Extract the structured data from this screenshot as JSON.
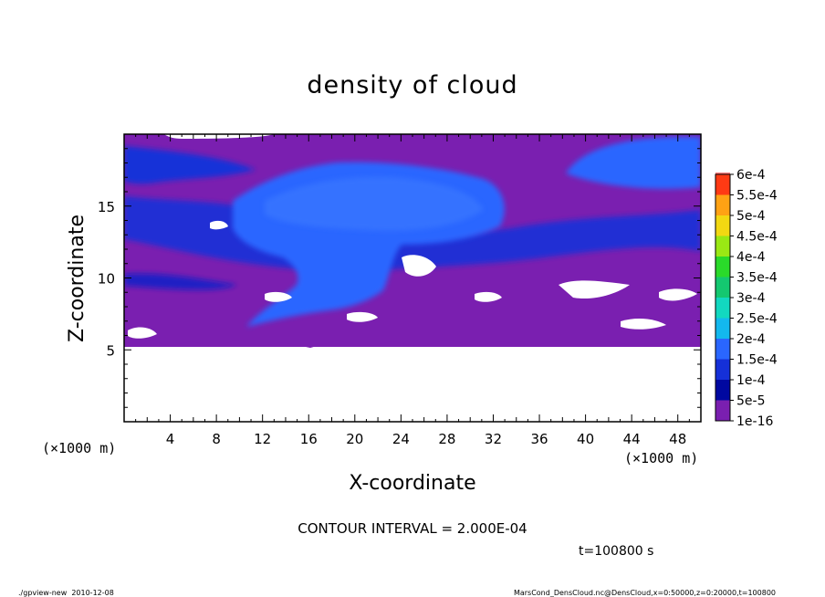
{
  "chart_data": {
    "type": "heatmap",
    "title": "density of cloud",
    "xlabel": "X-coordinate",
    "ylabel": "Z-coordinate",
    "x_unit": "(×1000 m)",
    "y_unit": "(×1000 m)",
    "xlim": [
      0,
      50
    ],
    "ylim": [
      0,
      20
    ],
    "x_ticks": [
      "4",
      "8",
      "12",
      "16",
      "20",
      "24",
      "28",
      "32",
      "36",
      "40",
      "44",
      "48"
    ],
    "y_ticks": [
      "5",
      "10",
      "15"
    ],
    "legend_position": "right",
    "colorbar": {
      "labels": [
        "1e-16",
        "5e-5",
        "1e-4",
        "1.5e-4",
        "2e-4",
        "2.5e-4",
        "3e-4",
        "3.5e-4",
        "4e-4",
        "4.5e-4",
        "5e-4",
        "5.5e-4",
        "6e-4"
      ],
      "colors": [
        "#7a1fb0",
        "#0008a0",
        "#1530d8",
        "#2a66ff",
        "#13b8ee",
        "#12d8c0",
        "#14c870",
        "#2ada2a",
        "#9ae814",
        "#f2d812",
        "#ffa214",
        "#ff3a14",
        "#ff7a7a"
      ]
    },
    "field_description_colors": {
      "background": "#7a1fb0",
      "low_cloud": "#1530d8",
      "core": "#2a66ff",
      "deep": "#0a1fc8"
    },
    "contour_interval_text": "CONTOUR INTERVAL = 2.000E-04",
    "time_text": "t=100800 s"
  },
  "footer": {
    "left": "./gpview-new  2010-12-08",
    "right": "MarsCond_DensCloud.nc@DensCloud,x=0:50000,z=0:20000,t=100800"
  }
}
